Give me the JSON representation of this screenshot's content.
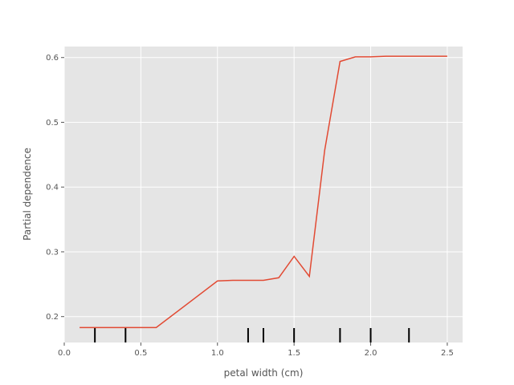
{
  "chart_data": {
    "type": "line",
    "title": "",
    "xlabel": "petal width (cm)",
    "ylabel": "Partial dependence",
    "xlim": [
      0.0,
      2.6
    ],
    "ylim": [
      0.16,
      0.617
    ],
    "xticks": [
      0.0,
      0.5,
      1.0,
      1.5,
      2.0,
      2.5
    ],
    "xtick_labels": [
      "0.0",
      "0.5",
      "1.0",
      "1.5",
      "2.0",
      "2.5"
    ],
    "yticks": [
      0.2,
      0.3,
      0.4,
      0.5,
      0.6
    ],
    "ytick_labels": [
      "0.2",
      "0.3",
      "0.4",
      "0.5",
      "0.6"
    ],
    "grid": true,
    "background": "#E5E5E5",
    "grid_color": "#FFFFFF",
    "line_color": "#E24A33",
    "rug_color": "#000000",
    "series": [
      {
        "x": [
          0.1,
          0.2,
          0.3,
          0.4,
          0.5,
          0.6,
          1.0,
          1.1,
          1.2,
          1.3,
          1.4,
          1.5,
          1.6,
          1.7,
          1.8,
          1.9,
          2.0,
          2.1,
          2.2,
          2.3,
          2.4,
          2.5
        ],
        "y": [
          0.183,
          0.183,
          0.183,
          0.183,
          0.183,
          0.183,
          0.255,
          0.256,
          0.256,
          0.256,
          0.26,
          0.293,
          0.262,
          0.457,
          0.594,
          0.601,
          0.601,
          0.602,
          0.602,
          0.602,
          0.602,
          0.602
        ]
      }
    ],
    "rug_x": [
      0.2,
      0.4,
      1.2,
      1.3,
      1.5,
      1.8,
      2.0,
      2.25
    ]
  }
}
